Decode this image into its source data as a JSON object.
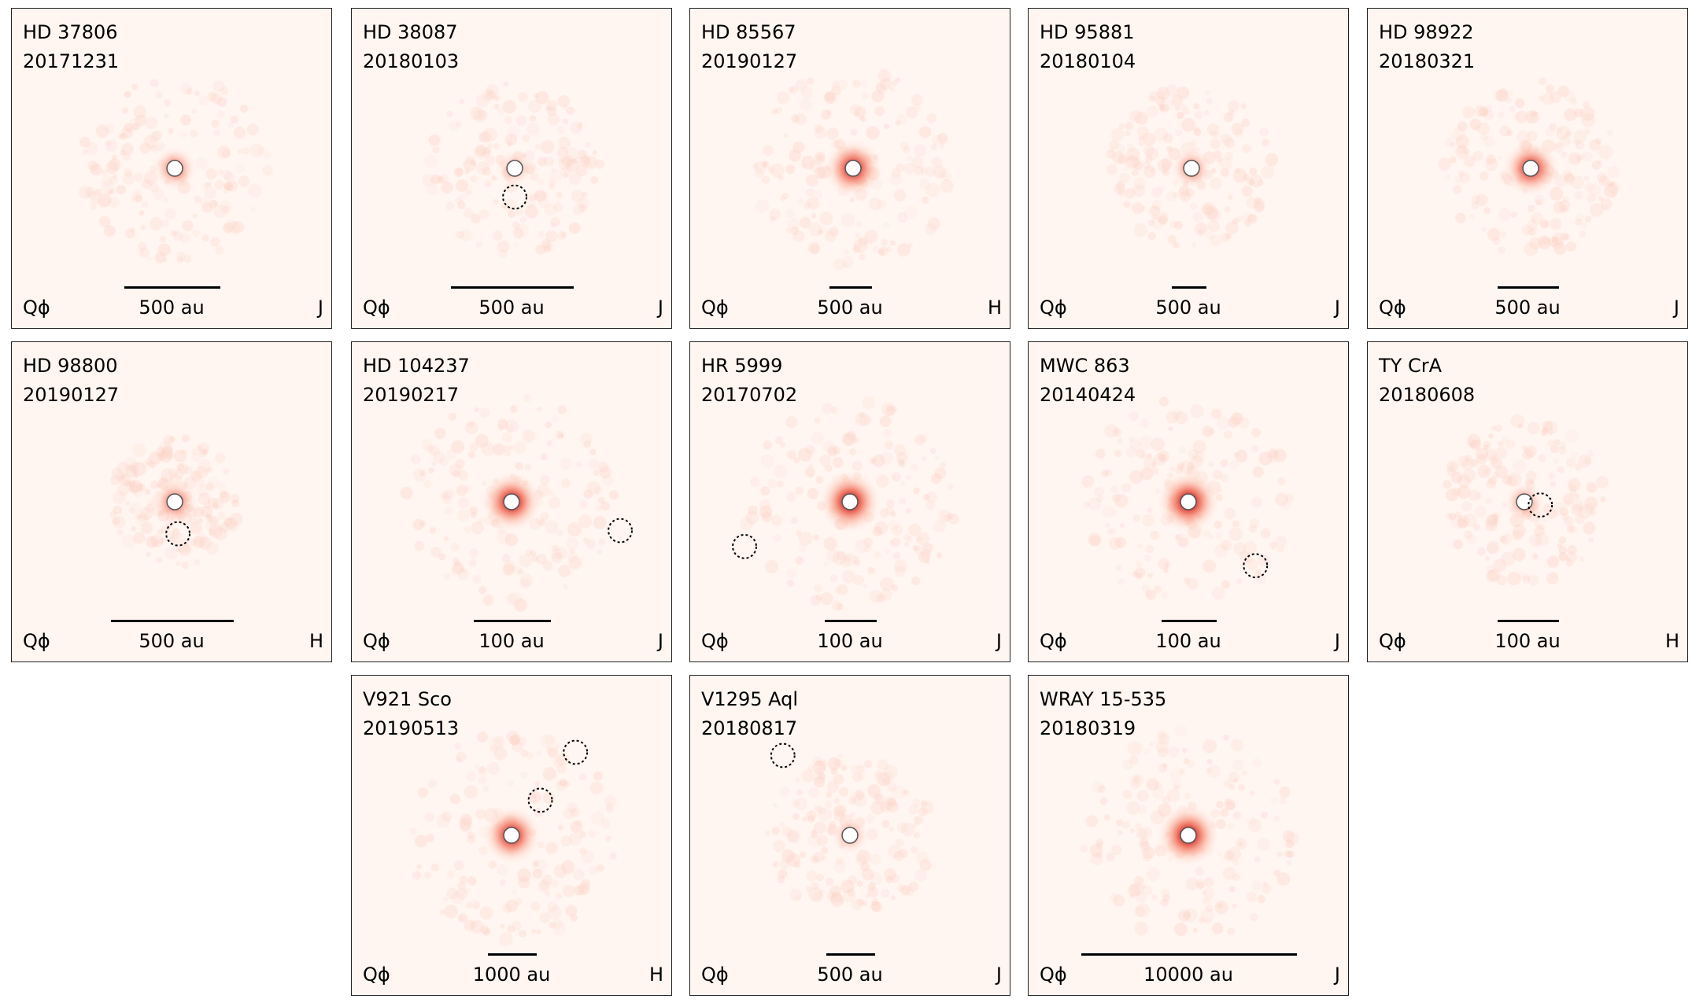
{
  "figure": {
    "panels": [
      {
        "name": "HD 37806",
        "date": "20171231",
        "quantity": "Qϕ",
        "scale_label": "500 au",
        "band": "J",
        "scale_fraction": 0.3,
        "star_pos": [
          0.51,
          0.5
        ],
        "intensity": 0.55,
        "halo": 0.8,
        "circles": []
      },
      {
        "name": "HD 38087",
        "date": "20180103",
        "quantity": "Qϕ",
        "scale_label": "500 au",
        "band": "J",
        "scale_fraction": 0.38,
        "star_pos": [
          0.51,
          0.5
        ],
        "intensity": 0.35,
        "halo": 0.75,
        "circles": [
          [
            0.51,
            0.59
          ]
        ]
      },
      {
        "name": "HD 85567",
        "date": "20190127",
        "quantity": "Qϕ",
        "scale_label": "500 au",
        "band": "H",
        "scale_fraction": 0.13,
        "star_pos": [
          0.51,
          0.5
        ],
        "intensity": 0.9,
        "halo": 0.85,
        "circles": []
      },
      {
        "name": "HD 95881",
        "date": "20180104",
        "quantity": "Qϕ",
        "scale_label": "500 au",
        "band": "J",
        "scale_fraction": 0.11,
        "star_pos": [
          0.51,
          0.5
        ],
        "intensity": 0.5,
        "halo": 0.7,
        "circles": []
      },
      {
        "name": "HD 98922",
        "date": "20180321",
        "quantity": "Qϕ",
        "scale_label": "500 au",
        "band": "J",
        "scale_fraction": 0.19,
        "star_pos": [
          0.51,
          0.5
        ],
        "intensity": 0.85,
        "halo": 0.75,
        "circles": []
      },
      {
        "name": "HD 98800",
        "date": "20190127",
        "quantity": "Qϕ",
        "scale_label": "500 au",
        "band": "H",
        "scale_fraction": 0.38,
        "star_pos": [
          0.51,
          0.5
        ],
        "intensity": 0.6,
        "halo": 0.55,
        "circles": [
          [
            0.52,
            0.6
          ]
        ]
      },
      {
        "name": "HD 104237",
        "date": "20190217",
        "quantity": "Qϕ",
        "scale_label": "100 au",
        "band": "J",
        "scale_fraction": 0.24,
        "star_pos": [
          0.5,
          0.5
        ],
        "intensity": 0.95,
        "halo": 0.9,
        "circles": [
          [
            0.84,
            0.59
          ]
        ]
      },
      {
        "name": "HR 5999",
        "date": "20170702",
        "quantity": "Qϕ",
        "scale_label": "100 au",
        "band": "J",
        "scale_fraction": 0.16,
        "star_pos": [
          0.5,
          0.5
        ],
        "intensity": 1.0,
        "halo": 0.9,
        "circles": [
          [
            0.17,
            0.64
          ]
        ]
      },
      {
        "name": "MWC 863",
        "date": "20140424",
        "quantity": "Qϕ",
        "scale_label": "100 au",
        "band": "J",
        "scale_fraction": 0.17,
        "star_pos": [
          0.5,
          0.5
        ],
        "intensity": 1.0,
        "halo": 0.9,
        "circles": [
          [
            0.71,
            0.7
          ]
        ]
      },
      {
        "name": "TY CrA",
        "date": "20180608",
        "quantity": "Qϕ",
        "scale_label": "100 au",
        "band": "H",
        "scale_fraction": 0.19,
        "star_pos": [
          0.49,
          0.5
        ],
        "intensity": 0.45,
        "halo": 0.7,
        "circles": [
          [
            0.54,
            0.51
          ]
        ]
      },
      {
        "name": "V921 Sco",
        "date": "20190513",
        "quantity": "Qϕ",
        "scale_label": "1000 au",
        "band": "H",
        "scale_fraction": 0.15,
        "star_pos": [
          0.5,
          0.5
        ],
        "intensity": 0.9,
        "halo": 0.9,
        "circles": [
          [
            0.7,
            0.24
          ],
          [
            0.59,
            0.39
          ]
        ]
      },
      {
        "name": "V1295 Aql",
        "date": "20180817",
        "quantity": "Qϕ",
        "scale_label": "500 au",
        "band": "J",
        "scale_fraction": 0.15,
        "star_pos": [
          0.5,
          0.5
        ],
        "intensity": 0.4,
        "halo": 0.7,
        "circles": [
          [
            0.29,
            0.25
          ]
        ]
      },
      {
        "name": "WRAY 15-535",
        "date": "20180319",
        "quantity": "Qϕ",
        "scale_label": "10000 au",
        "band": "J",
        "scale_fraction": 0.67,
        "star_pos": [
          0.5,
          0.5
        ],
        "intensity": 1.0,
        "halo": 0.9,
        "circles": []
      }
    ]
  }
}
